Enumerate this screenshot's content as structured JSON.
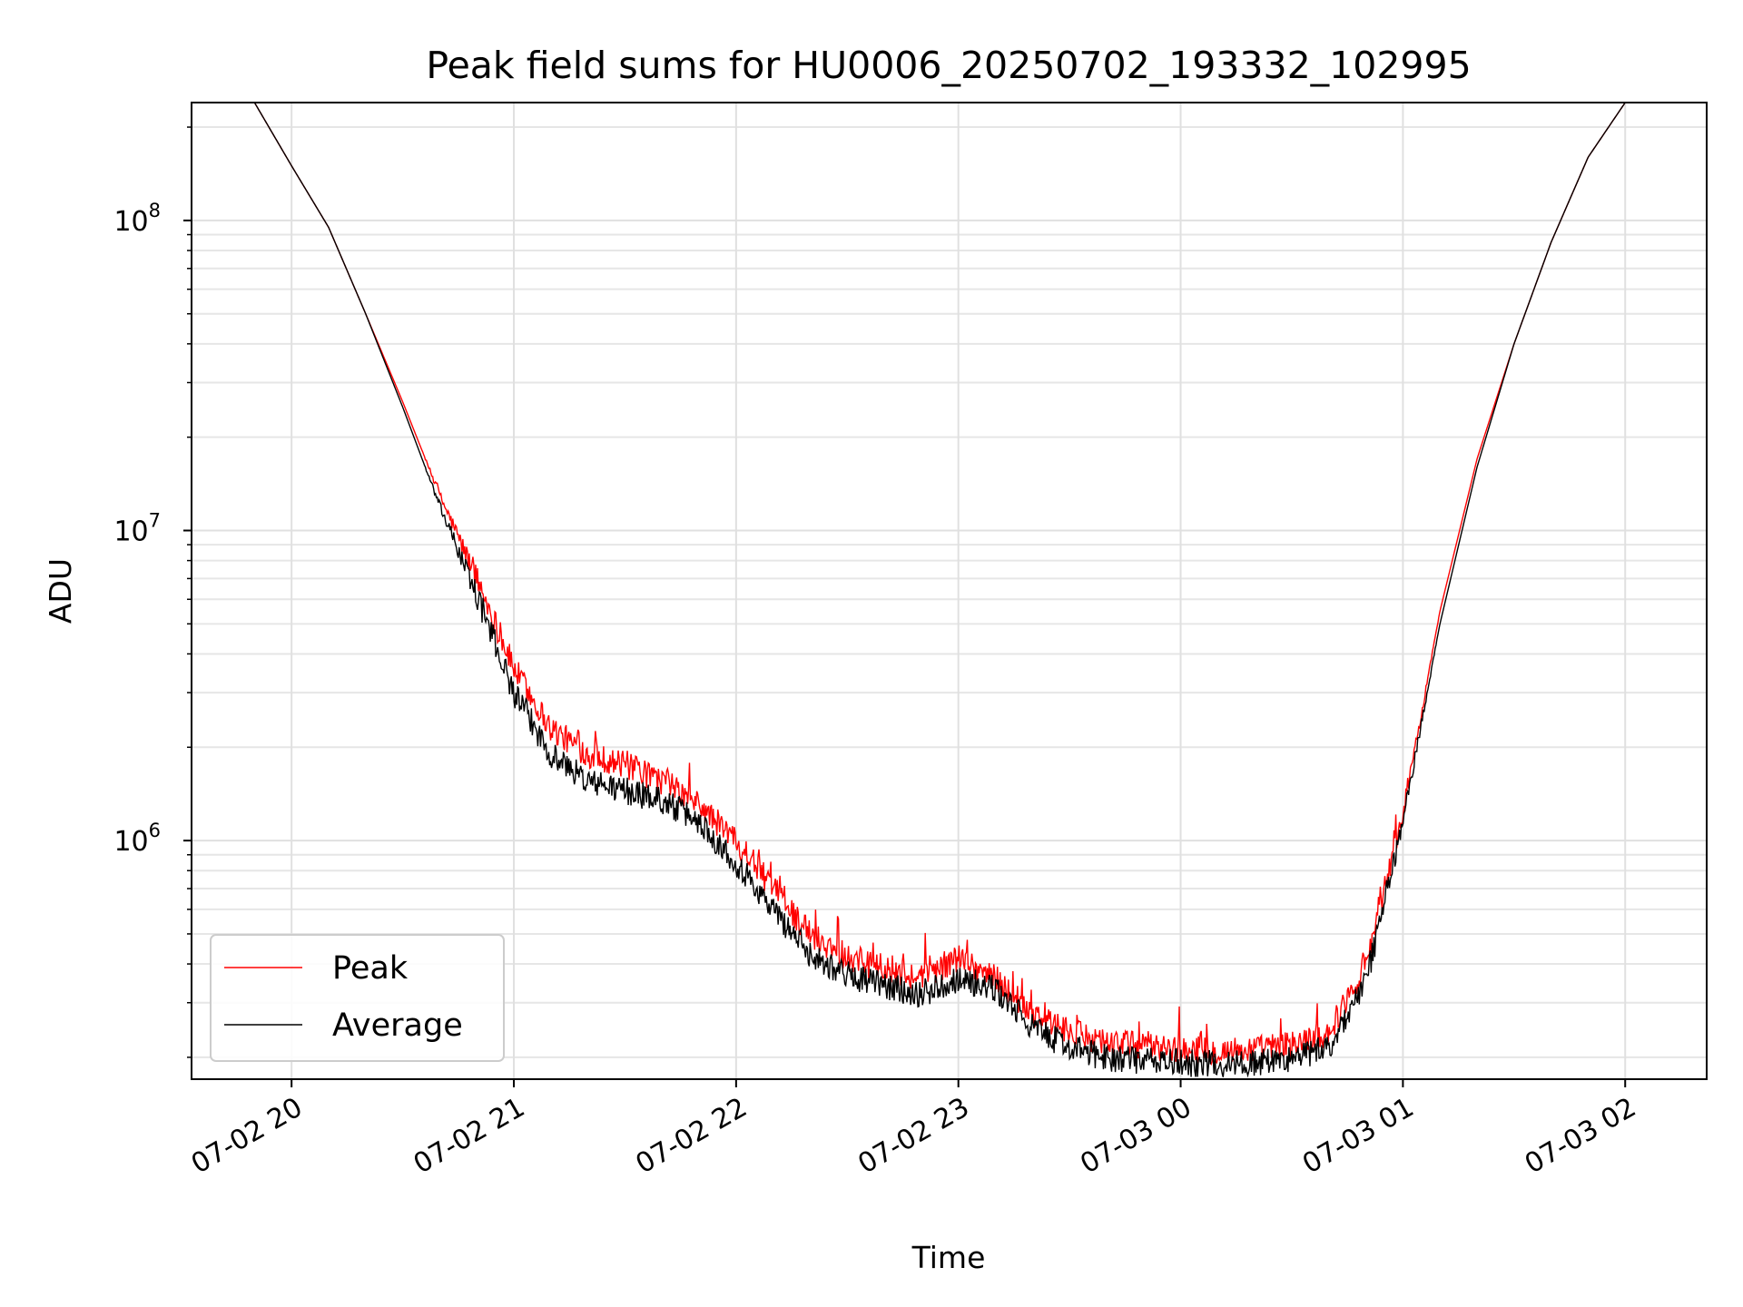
{
  "chart_data": {
    "type": "line",
    "title": "Peak field sums for HU0006_20250702_193332_102995",
    "xlabel": "Time",
    "ylabel": "ADU",
    "yscale": "log",
    "xlim": [
      "2025-07-02 19:33",
      "2025-07-03 02:22"
    ],
    "ylim": [
      170000,
      240000000
    ],
    "x_ticks": [
      "07-02 20",
      "07-02 21",
      "07-02 22",
      "07-02 23",
      "07-03 00",
      "07-03 01",
      "07-03 02"
    ],
    "y_ticks": [
      {
        "base": "10",
        "exp": "6",
        "value": 1000000
      },
      {
        "base": "10",
        "exp": "7",
        "value": 10000000
      },
      {
        "base": "10",
        "exp": "8",
        "value": 100000000
      }
    ],
    "grid": true,
    "legend_position": "lower left",
    "x": [
      "2025-07-02 19:50",
      "2025-07-02 20:00",
      "2025-07-02 20:10",
      "2025-07-02 20:20",
      "2025-07-02 20:30",
      "2025-07-02 20:40",
      "2025-07-02 20:50",
      "2025-07-02 21:00",
      "2025-07-02 21:10",
      "2025-07-02 21:20",
      "2025-07-02 21:30",
      "2025-07-02 21:40",
      "2025-07-02 21:50",
      "2025-07-02 22:00",
      "2025-07-02 22:10",
      "2025-07-02 22:20",
      "2025-07-02 22:30",
      "2025-07-02 22:40",
      "2025-07-02 22:50",
      "2025-07-02 23:00",
      "2025-07-02 23:10",
      "2025-07-02 23:20",
      "2025-07-02 23:30",
      "2025-07-02 23:40",
      "2025-07-02 23:50",
      "2025-07-03 00:00",
      "2025-07-03 00:10",
      "2025-07-03 00:20",
      "2025-07-03 00:30",
      "2025-07-03 00:40",
      "2025-07-03 00:50",
      "2025-07-03 01:00",
      "2025-07-03 01:10",
      "2025-07-03 01:20",
      "2025-07-03 01:30",
      "2025-07-03 01:40",
      "2025-07-03 01:50",
      "2025-07-03 02:00"
    ],
    "series": [
      {
        "name": "Peak",
        "color": "#ff0000",
        "values": [
          240000000,
          150000000,
          95000000,
          50000000,
          26000000,
          13000000,
          7000000,
          3600000,
          2300000,
          1900000,
          1750000,
          1550000,
          1300000,
          1000000,
          700000,
          500000,
          420000,
          380000,
          360000,
          420000,
          360000,
          280000,
          240000,
          225000,
          218000,
          212000,
          210000,
          212000,
          220000,
          240000,
          400000,
          1200000,
          5500000,
          17000000,
          40000000,
          85000000,
          160000000,
          240000000
        ]
      },
      {
        "name": "Average",
        "color": "#000000",
        "values": [
          240000000,
          150000000,
          95000000,
          50000000,
          25000000,
          12000000,
          6200000,
          3000000,
          1900000,
          1550000,
          1450000,
          1350000,
          1150000,
          850000,
          600000,
          430000,
          370000,
          340000,
          320000,
          360000,
          330000,
          250000,
          215000,
          200000,
          195000,
          192000,
          190000,
          192000,
          198000,
          215000,
          350000,
          1150000,
          5000000,
          16000000,
          40000000,
          85000000,
          160000000,
          240000000
        ]
      }
    ]
  }
}
